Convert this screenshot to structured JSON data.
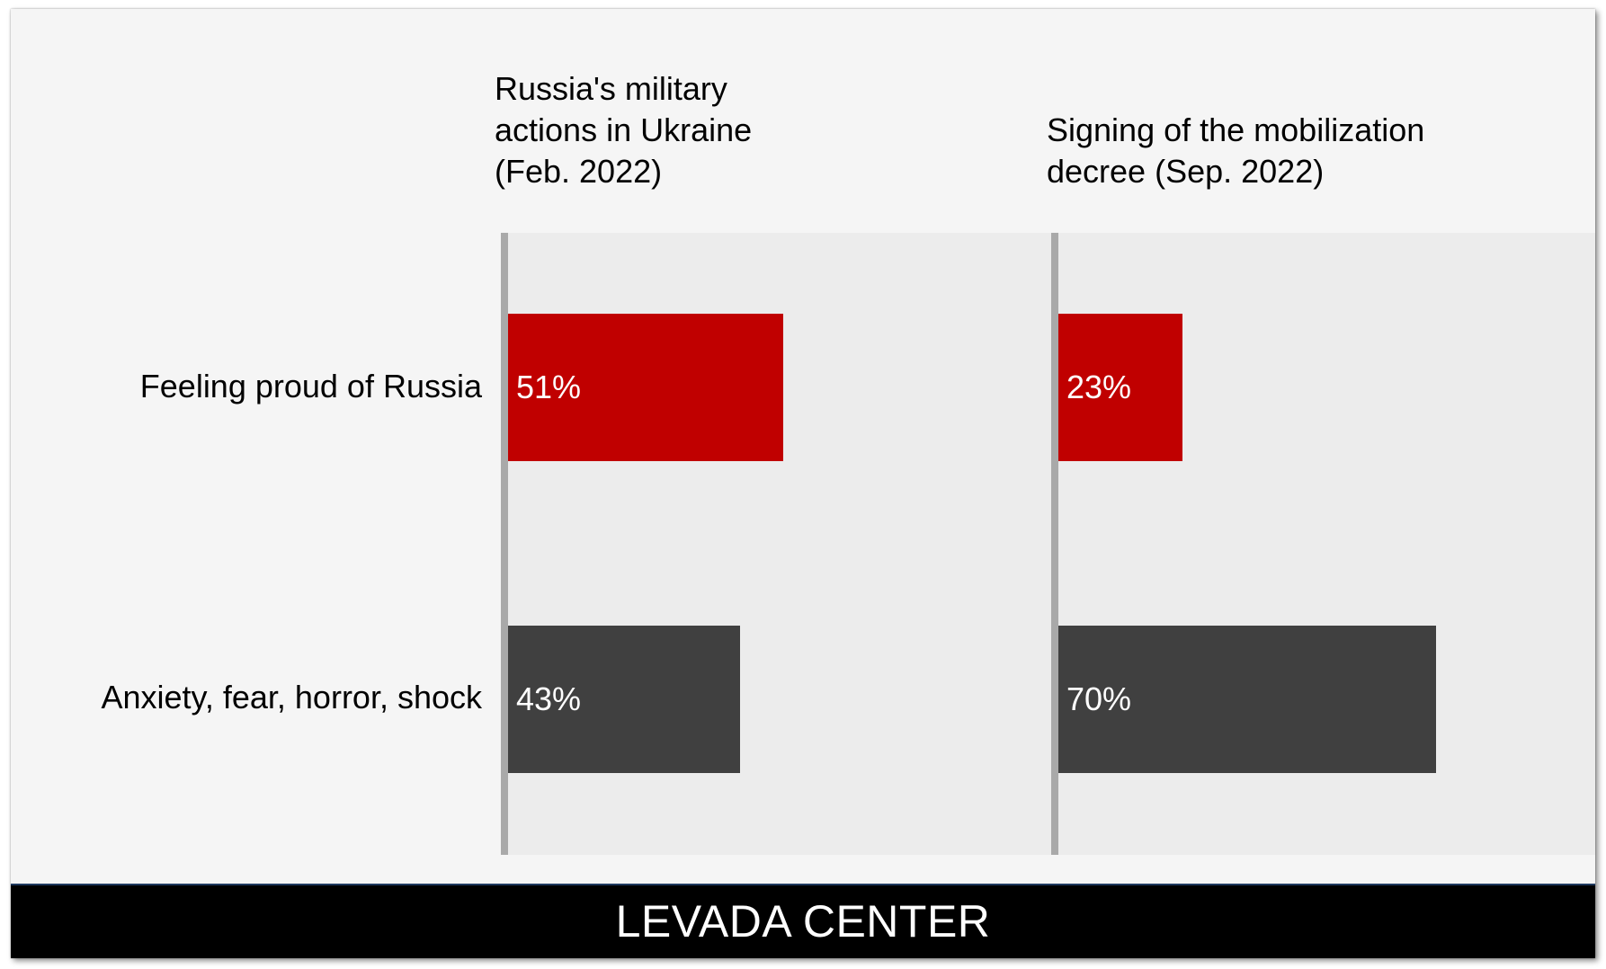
{
  "chart_data": {
    "type": "bar",
    "orientation": "horizontal",
    "categories": [
      "Feeling proud of Russia",
      "Anxiety, fear, horror, shock"
    ],
    "panels": [
      {
        "title_lines": [
          "Russia's military",
          "actions in Ukraine",
          "(Feb. 2022)"
        ],
        "values": [
          51,
          43
        ],
        "labels": [
          "51%",
          "43%"
        ]
      },
      {
        "title_lines": [
          "Signing of the mobilization",
          "decree (Sep. 2022)"
        ],
        "values": [
          23,
          70
        ],
        "labels": [
          "23%",
          "70%"
        ]
      }
    ],
    "xlim": [
      0,
      100
    ],
    "unit": "%",
    "grid": false,
    "legend": "none",
    "colors": [
      "#c00000",
      "#404040"
    ]
  },
  "footer": {
    "brand": "LEVADA CENTER"
  }
}
